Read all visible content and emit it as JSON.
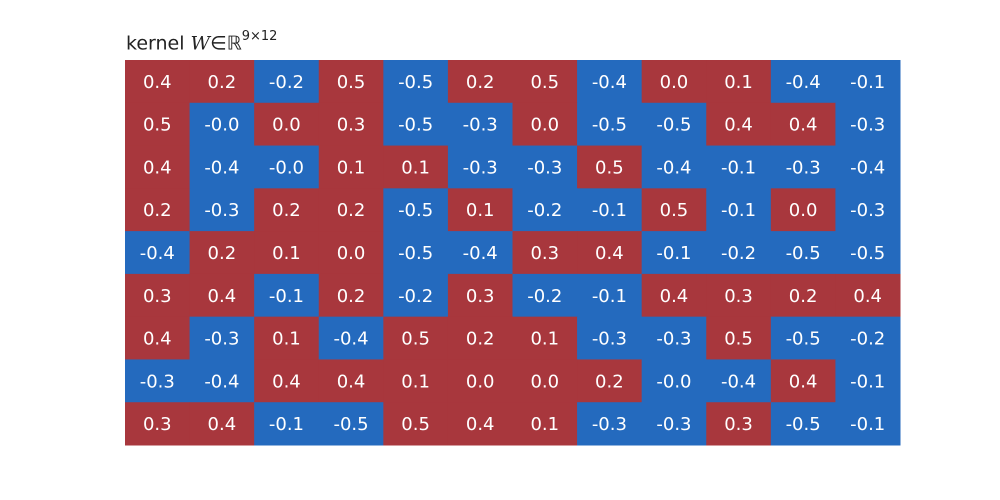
{
  "chart_data": {
    "type": "heatmap",
    "title": {
      "prefix": "kernel ",
      "symbol": "W",
      "relation": "∈",
      "set": "ℝ",
      "superscript": "9×12"
    },
    "rows": 9,
    "cols": 12,
    "colors": {
      "positive": "#a8373d",
      "negative": "#246abe",
      "text": "#ffffff"
    },
    "values": [
      [
        "0.4",
        "0.2",
        "-0.2",
        "0.5",
        "-0.5",
        "0.2",
        "0.5",
        "-0.4",
        "0.0",
        "0.1",
        "-0.4",
        "-0.1"
      ],
      [
        "0.5",
        "-0.0",
        "0.0",
        "0.3",
        "-0.5",
        "-0.3",
        "0.0",
        "-0.5",
        "-0.5",
        "0.4",
        "0.4",
        "-0.3"
      ],
      [
        "0.4",
        "-0.4",
        "-0.0",
        "0.1",
        "0.1",
        "-0.3",
        "-0.3",
        "0.5",
        "-0.4",
        "-0.1",
        "-0.3",
        "-0.4"
      ],
      [
        "0.2",
        "-0.3",
        "0.2",
        "0.2",
        "-0.5",
        "0.1",
        "-0.2",
        "-0.1",
        "0.5",
        "-0.1",
        "0.0",
        "-0.3"
      ],
      [
        "-0.4",
        "0.2",
        "0.1",
        "0.0",
        "-0.5",
        "-0.4",
        "0.3",
        "0.4",
        "-0.1",
        "-0.2",
        "-0.5",
        "-0.5"
      ],
      [
        "0.3",
        "0.4",
        "-0.1",
        "0.2",
        "-0.2",
        "0.3",
        "-0.2",
        "-0.1",
        "0.4",
        "0.3",
        "0.2",
        "0.4"
      ],
      [
        "0.4",
        "-0.3",
        "0.1",
        "-0.4",
        "0.5",
        "0.2",
        "0.1",
        "-0.3",
        "-0.3",
        "0.5",
        "-0.5",
        "-0.2"
      ],
      [
        "-0.3",
        "-0.4",
        "0.4",
        "0.4",
        "0.1",
        "0.0",
        "0.0",
        "0.2",
        "-0.0",
        "-0.4",
        "0.4",
        "-0.1"
      ],
      [
        "0.3",
        "0.4",
        "-0.1",
        "-0.5",
        "0.5",
        "0.4",
        "0.1",
        "-0.3",
        "-0.3",
        "0.3",
        "-0.5",
        "-0.1"
      ]
    ]
  }
}
